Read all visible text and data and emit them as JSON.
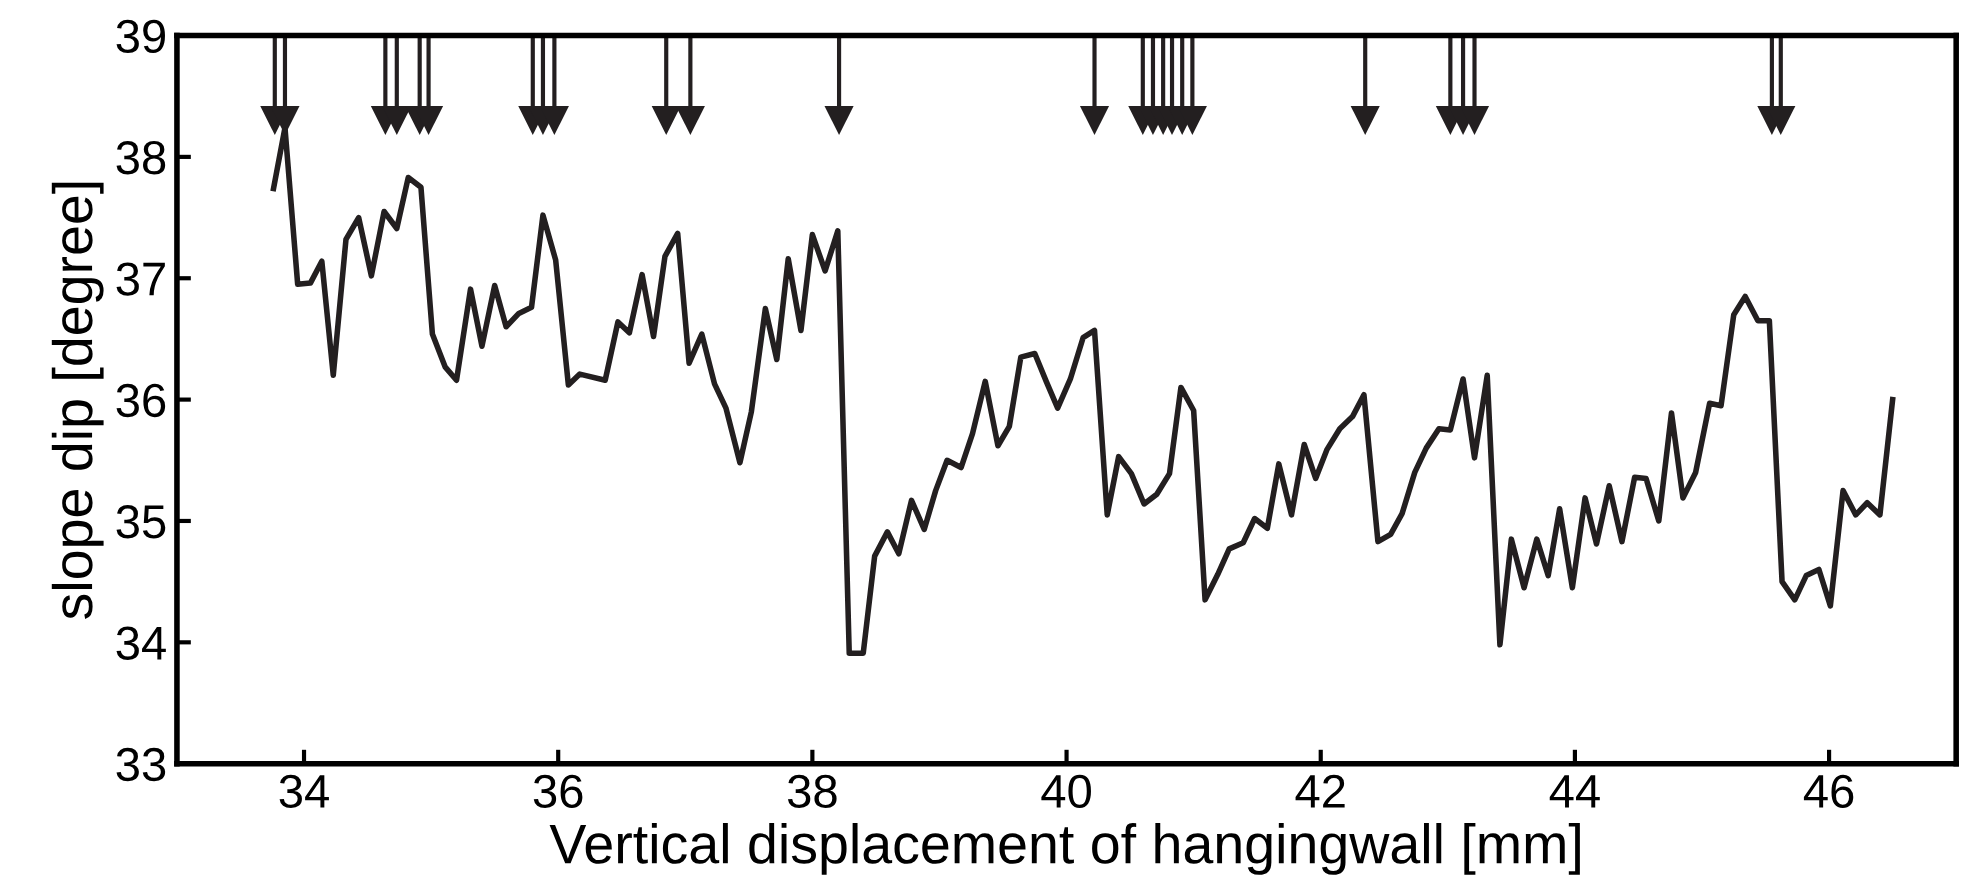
{
  "chart_data": {
    "type": "line",
    "xlabel": "Vertical displacement of hangingwall [mm]",
    "ylabel": "slope dip [degree]",
    "xlim": [
      33,
      47
    ],
    "ylim": [
      33,
      39
    ],
    "xticks": [
      34,
      36,
      38,
      40,
      42,
      44,
      46
    ],
    "yticks": [
      33,
      34,
      35,
      36,
      37,
      38,
      39
    ],
    "grid": false,
    "legend": false,
    "series": [
      {
        "color": "#231f20",
        "marker": "none",
        "line_style": "solid",
        "x": [
          33.76,
          33.85,
          33.95,
          34.05,
          34.14,
          34.23,
          34.33,
          34.43,
          34.53,
          34.63,
          34.73,
          34.82,
          34.92,
          35.01,
          35.11,
          35.2,
          35.31,
          35.4,
          35.5,
          35.59,
          35.69,
          35.79,
          35.88,
          35.98,
          36.08,
          36.17,
          36.37,
          36.47,
          36.56,
          36.66,
          36.75,
          36.84,
          36.94,
          37.03,
          37.13,
          37.23,
          37.32,
          37.43,
          37.52,
          37.63,
          37.72,
          37.81,
          37.91,
          38.0,
          38.1,
          38.2,
          38.29,
          38.4,
          38.49,
          38.59,
          38.68,
          38.78,
          38.88,
          38.97,
          39.06,
          39.17,
          39.26,
          39.36,
          39.46,
          39.55,
          39.64,
          39.75,
          39.84,
          39.93,
          40.03,
          40.13,
          40.22,
          40.32,
          40.41,
          40.51,
          40.61,
          40.71,
          40.81,
          40.9,
          41.0,
          41.09,
          41.19,
          41.28,
          41.39,
          41.48,
          41.58,
          41.67,
          41.77,
          41.87,
          41.96,
          42.05,
          42.15,
          42.25,
          42.34,
          42.45,
          42.55,
          42.64,
          42.74,
          42.83,
          42.93,
          43.02,
          43.12,
          43.21,
          43.31,
          43.41,
          43.5,
          43.6,
          43.7,
          43.79,
          43.88,
          43.98,
          44.08,
          44.17,
          44.27,
          44.37,
          44.47,
          44.56,
          44.66,
          44.76,
          44.85,
          44.95,
          45.06,
          45.15,
          45.25,
          45.34,
          45.44,
          45.53,
          45.63,
          45.73,
          45.82,
          45.92,
          46.01,
          46.11,
          46.21,
          46.3,
          46.4,
          46.5
        ],
        "values": [
          37.74,
          38.24,
          36.95,
          36.96,
          37.14,
          36.2,
          37.32,
          37.5,
          37.02,
          37.55,
          37.41,
          37.83,
          37.75,
          36.54,
          36.27,
          36.16,
          36.91,
          36.44,
          36.94,
          36.6,
          36.71,
          36.76,
          37.52,
          37.15,
          36.12,
          36.21,
          36.16,
          36.64,
          36.55,
          37.03,
          36.52,
          37.18,
          37.37,
          36.3,
          36.54,
          36.13,
          35.93,
          35.48,
          35.9,
          36.75,
          36.33,
          37.16,
          36.57,
          37.36,
          37.06,
          37.39,
          33.91,
          33.91,
          34.71,
          34.91,
          34.73,
          35.17,
          34.93,
          35.25,
          35.5,
          35.44,
          35.72,
          36.15,
          35.62,
          35.78,
          36.35,
          36.38,
          36.15,
          35.93,
          36.17,
          36.51,
          36.57,
          35.05,
          35.53,
          35.39,
          35.14,
          35.22,
          35.39,
          36.1,
          35.91,
          34.35,
          34.56,
          34.77,
          34.82,
          35.02,
          34.94,
          35.47,
          35.05,
          35.63,
          35.35,
          35.59,
          35.76,
          35.86,
          36.04,
          34.83,
          34.89,
          35.06,
          35.4,
          35.6,
          35.76,
          35.75,
          36.17,
          35.52,
          36.2,
          33.98,
          34.85,
          34.45,
          34.85,
          34.55,
          35.1,
          34.45,
          35.19,
          34.81,
          35.29,
          34.83,
          35.36,
          35.35,
          35.0,
          35.89,
          35.19,
          35.4,
          35.97,
          35.95,
          36.7,
          36.85,
          36.65,
          36.65,
          34.5,
          34.35,
          34.55,
          34.6,
          34.3,
          35.25,
          35.05,
          35.15,
          35.05,
          36.0
        ]
      },
      {
        "type": "scatter",
        "color": "#231f20",
        "marker": "triangle",
        "x": [
          33.77,
          33.85,
          34.64,
          34.73,
          34.91,
          34.98,
          35.8,
          35.88,
          35.97,
          36.85,
          37.04,
          38.21,
          40.22,
          40.6,
          40.68,
          40.76,
          40.83,
          40.91,
          40.99,
          42.35,
          43.02,
          43.12,
          43.21,
          45.55,
          45.62
        ],
        "values": [
          38.3,
          38.3,
          38.3,
          38.3,
          38.3,
          38.3,
          38.3,
          38.3,
          38.3,
          38.3,
          38.3,
          38.3,
          38.3,
          38.3,
          38.3,
          38.3,
          38.3,
          38.3,
          38.3,
          38.3,
          38.3,
          38.3,
          38.3,
          38.3,
          38.3
        ]
      }
    ]
  }
}
